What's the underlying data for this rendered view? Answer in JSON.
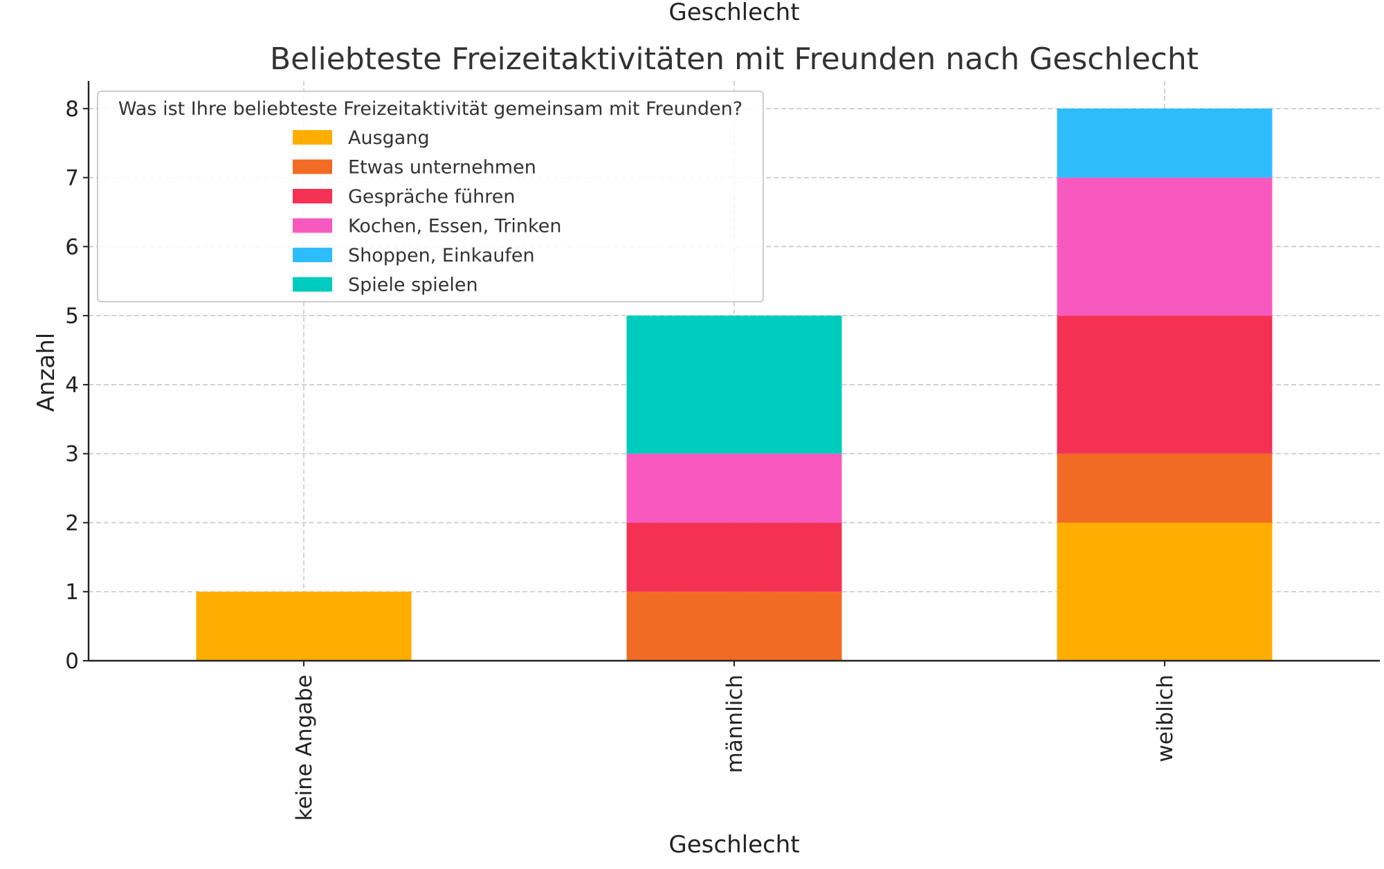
{
  "chart_data": {
    "type": "bar",
    "stacked": true,
    "title": "Beliebteste Freizeitaktivitäten mit Freunden nach Geschlecht",
    "top_label": "Geschlecht",
    "xlabel": "Geschlecht",
    "ylabel": "Anzahl",
    "categories": [
      "keine Angabe",
      "männlich",
      "weiblich"
    ],
    "ylim": [
      0,
      8.4
    ],
    "yticks": [
      0,
      1,
      2,
      3,
      4,
      5,
      6,
      7,
      8
    ],
    "grid": true,
    "legend": {
      "title": "Was ist Ihre beliebteste Freizeitaktivität gemeinsam mit Freunden?",
      "placement": "top-left"
    },
    "series": [
      {
        "name": "Ausgang",
        "color": "#FFAE00",
        "values": [
          1,
          0,
          2
        ]
      },
      {
        "name": "Etwas unternehmen",
        "color": "#F26B24",
        "values": [
          0,
          1,
          1
        ]
      },
      {
        "name": "Gespräche führen",
        "color": "#F53153",
        "values": [
          0,
          1,
          2
        ]
      },
      {
        "name": "Kochen, Essen, Trinken",
        "color": "#F859BF",
        "values": [
          0,
          1,
          2
        ]
      },
      {
        "name": "Shoppen, Einkaufen",
        "color": "#2EBDFC",
        "values": [
          0,
          0,
          1
        ]
      },
      {
        "name": "Spiele spielen",
        "color": "#00CBBF",
        "values": [
          0,
          2,
          0
        ]
      }
    ]
  }
}
